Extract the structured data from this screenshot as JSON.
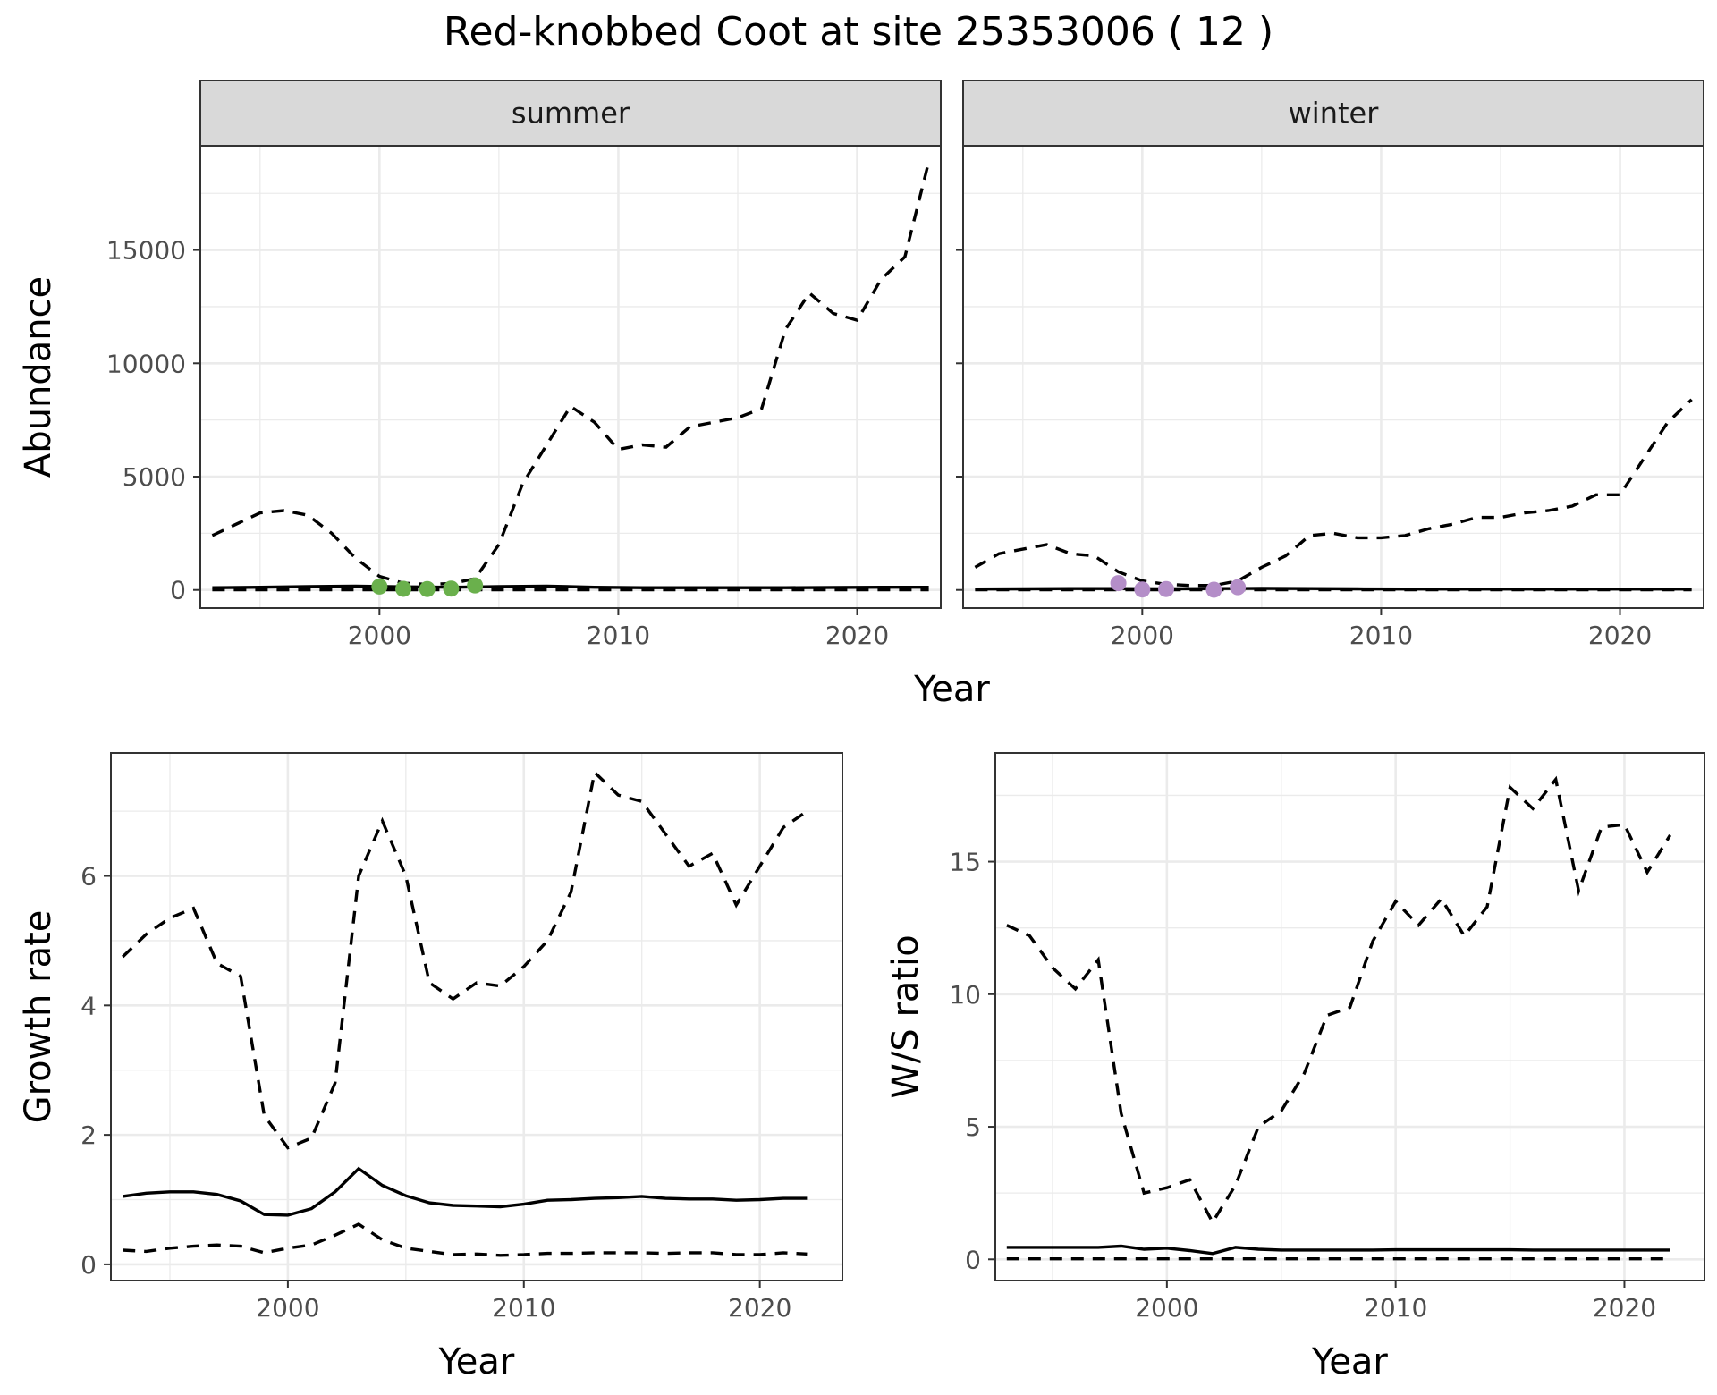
{
  "title": "Red-knobbed Coot at site 25353006 ( 12 )",
  "colors": {
    "summer_points": "#6ab04c",
    "winter_points": "#b48ec8",
    "line": "#000000",
    "strip_bg": "#d9d9d9"
  },
  "chart_data": [
    {
      "id": "abundance",
      "type": "line",
      "facets": [
        "summer",
        "winter"
      ],
      "xlabel": "Year",
      "ylabel": "Abundance",
      "xlim": [
        1992.5,
        2023.5
      ],
      "ylim": [
        -800,
        19600
      ],
      "x_ticks": [
        2000,
        2010,
        2020
      ],
      "y_ticks": [
        0,
        5000,
        10000,
        15000
      ],
      "panels": [
        {
          "strip": "summer",
          "point_color": "#6ab04c",
          "mean": {
            "x": [
              1993,
              1995,
              1997,
              1999,
              2001,
              2003,
              2005,
              2007,
              2009,
              2011,
              2013,
              2015,
              2017,
              2019,
              2021,
              2023
            ],
            "y": [
              100,
              120,
              150,
              170,
              140,
              120,
              150,
              170,
              120,
              100,
              100,
              100,
              100,
              110,
              120,
              120
            ]
          },
          "upper": {
            "x": [
              1993,
              1994,
              1995,
              1996,
              1997,
              1998,
              1999,
              2000,
              2001,
              2002,
              2003,
              2004,
              2005,
              2006,
              2007,
              2008,
              2009,
              2010,
              2011,
              2012,
              2013,
              2014,
              2015,
              2016,
              2017,
              2018,
              2019,
              2020,
              2021,
              2022,
              2023
            ],
            "y": [
              2400,
              2900,
              3400,
              3500,
              3300,
              2500,
              1400,
              600,
              300,
              250,
              280,
              500,
              2000,
              4700,
              6400,
              8100,
              7400,
              6200,
              6400,
              6300,
              7200,
              7400,
              7600,
              8000,
              11500,
              13100,
              12200,
              11900,
              13700,
              14700,
              18900
            ]
          },
          "lower": {
            "x": [
              1993,
              2003,
              2013,
              2023
            ],
            "y": [
              10,
              5,
              10,
              10
            ]
          },
          "points": {
            "x": [
              2000,
              2001,
              2002,
              2003,
              2004
            ],
            "y": [
              150,
              50,
              40,
              60,
              200
            ]
          }
        },
        {
          "strip": "winter",
          "point_color": "#b48ec8",
          "mean": {
            "x": [
              1993,
              1995,
              1997,
              1999,
              2001,
              2003,
              2005,
              2007,
              2009,
              2011,
              2013,
              2015,
              2017,
              2019,
              2021,
              2023
            ],
            "y": [
              40,
              50,
              60,
              60,
              50,
              60,
              70,
              60,
              50,
              40,
              40,
              40,
              40,
              40,
              40,
              40
            ]
          },
          "upper": {
            "x": [
              1993,
              1994,
              1995,
              1996,
              1997,
              1998,
              1999,
              2000,
              2001,
              2002,
              2003,
              2004,
              2005,
              2006,
              2007,
              2008,
              2009,
              2010,
              2011,
              2012,
              2013,
              2014,
              2015,
              2016,
              2017,
              2018,
              2019,
              2020,
              2021,
              2022,
              2023
            ],
            "y": [
              1000,
              1600,
              1800,
              2000,
              1600,
              1500,
              800,
              400,
              250,
              200,
              200,
              400,
              1000,
              1500,
              2400,
              2500,
              2300,
              2300,
              2400,
              2700,
              2900,
              3200,
              3200,
              3400,
              3500,
              3700,
              4200,
              4200,
              5800,
              7400,
              8400
            ]
          },
          "lower": {
            "x": [
              1993,
              2003,
              2013,
              2023
            ],
            "y": [
              5,
              5,
              5,
              5
            ]
          },
          "points": {
            "x": [
              1999,
              2000,
              2001,
              2003,
              2004
            ],
            "y": [
              300,
              20,
              40,
              10,
              120
            ]
          }
        }
      ]
    },
    {
      "id": "growth",
      "type": "line",
      "xlabel": "Year",
      "ylabel": "Growth rate",
      "xlim": [
        1992.5,
        2023.5
      ],
      "ylim": [
        -0.25,
        7.9
      ],
      "x_ticks": [
        2000,
        2010,
        2020
      ],
      "y_ticks": [
        0,
        2,
        4,
        6
      ],
      "mean": {
        "x": [
          1993,
          1994,
          1995,
          1996,
          1997,
          1998,
          1999,
          2000,
          2001,
          2002,
          2003,
          2004,
          2005,
          2006,
          2007,
          2008,
          2009,
          2010,
          2011,
          2012,
          2013,
          2014,
          2015,
          2016,
          2017,
          2018,
          2019,
          2020,
          2021,
          2022
        ],
        "y": [
          1.05,
          1.1,
          1.12,
          1.12,
          1.08,
          0.98,
          0.77,
          0.76,
          0.86,
          1.12,
          1.48,
          1.22,
          1.06,
          0.95,
          0.91,
          0.9,
          0.89,
          0.93,
          0.99,
          1.0,
          1.02,
          1.03,
          1.05,
          1.02,
          1.01,
          1.01,
          0.99,
          1.0,
          1.02,
          1.02
        ]
      },
      "upper": {
        "x": [
          1993,
          1994,
          1995,
          1996,
          1997,
          1998,
          1999,
          2000,
          2001,
          2002,
          2003,
          2004,
          2005,
          2006,
          2007,
          2008,
          2009,
          2010,
          2011,
          2012,
          2013,
          2014,
          2015,
          2016,
          2017,
          2018,
          2019,
          2020,
          2021,
          2022
        ],
        "y": [
          4.75,
          5.1,
          5.35,
          5.5,
          4.65,
          4.45,
          2.3,
          1.8,
          1.95,
          2.8,
          6.0,
          6.85,
          6.0,
          4.35,
          4.1,
          4.35,
          4.3,
          4.6,
          5.0,
          5.75,
          7.6,
          7.25,
          7.15,
          6.65,
          6.15,
          6.35,
          5.55,
          6.15,
          6.75,
          7.0
        ]
      },
      "lower": {
        "x": [
          1993,
          1994,
          1995,
          1996,
          1997,
          1998,
          1999,
          2000,
          2001,
          2002,
          2003,
          2004,
          2005,
          2006,
          2007,
          2008,
          2009,
          2010,
          2011,
          2012,
          2013,
          2014,
          2015,
          2016,
          2017,
          2018,
          2019,
          2020,
          2021,
          2022
        ],
        "y": [
          0.22,
          0.2,
          0.25,
          0.28,
          0.3,
          0.28,
          0.18,
          0.25,
          0.3,
          0.45,
          0.62,
          0.38,
          0.25,
          0.2,
          0.15,
          0.16,
          0.14,
          0.15,
          0.17,
          0.17,
          0.18,
          0.18,
          0.18,
          0.17,
          0.18,
          0.18,
          0.15,
          0.15,
          0.18,
          0.16
        ]
      }
    },
    {
      "id": "ws_ratio",
      "type": "line",
      "xlabel": "Year",
      "ylabel": "W/S ratio",
      "xlim": [
        1992.5,
        2023.5
      ],
      "ylim": [
        -0.8,
        19.1
      ],
      "x_ticks": [
        2000,
        2010,
        2020
      ],
      "y_ticks": [
        0,
        5,
        10,
        15
      ],
      "mean": {
        "x": [
          1993,
          1994,
          1995,
          1996,
          1997,
          1998,
          1999,
          2000,
          2001,
          2002,
          2003,
          2004,
          2005,
          2006,
          2007,
          2008,
          2009,
          2010,
          2011,
          2012,
          2013,
          2014,
          2015,
          2016,
          2017,
          2018,
          2019,
          2020,
          2021,
          2022
        ],
        "y": [
          0.45,
          0.45,
          0.45,
          0.45,
          0.45,
          0.5,
          0.38,
          0.42,
          0.33,
          0.22,
          0.45,
          0.38,
          0.35,
          0.35,
          0.35,
          0.35,
          0.35,
          0.36,
          0.36,
          0.36,
          0.36,
          0.36,
          0.36,
          0.35,
          0.35,
          0.35,
          0.35,
          0.35,
          0.35,
          0.35
        ]
      },
      "upper": {
        "x": [
          1993,
          1994,
          1995,
          1996,
          1997,
          1998,
          1999,
          2000,
          2001,
          2002,
          2003,
          2004,
          2005,
          2006,
          2007,
          2008,
          2009,
          2010,
          2011,
          2012,
          2013,
          2014,
          2015,
          2016,
          2017,
          2018,
          2019,
          2020,
          2021,
          2022
        ],
        "y": [
          12.6,
          12.2,
          11.0,
          10.2,
          11.3,
          5.5,
          2.5,
          2.7,
          3.0,
          1.4,
          2.8,
          5.0,
          5.6,
          7.0,
          9.2,
          9.5,
          12.0,
          13.5,
          12.6,
          13.6,
          12.2,
          13.3,
          17.8,
          17.0,
          18.1,
          13.9,
          16.3,
          16.4,
          14.6,
          16.0
        ]
      },
      "lower": {
        "x": [
          1993,
          2003,
          2013,
          2022
        ],
        "y": [
          0.02,
          0.02,
          0.02,
          0.02
        ]
      }
    }
  ]
}
